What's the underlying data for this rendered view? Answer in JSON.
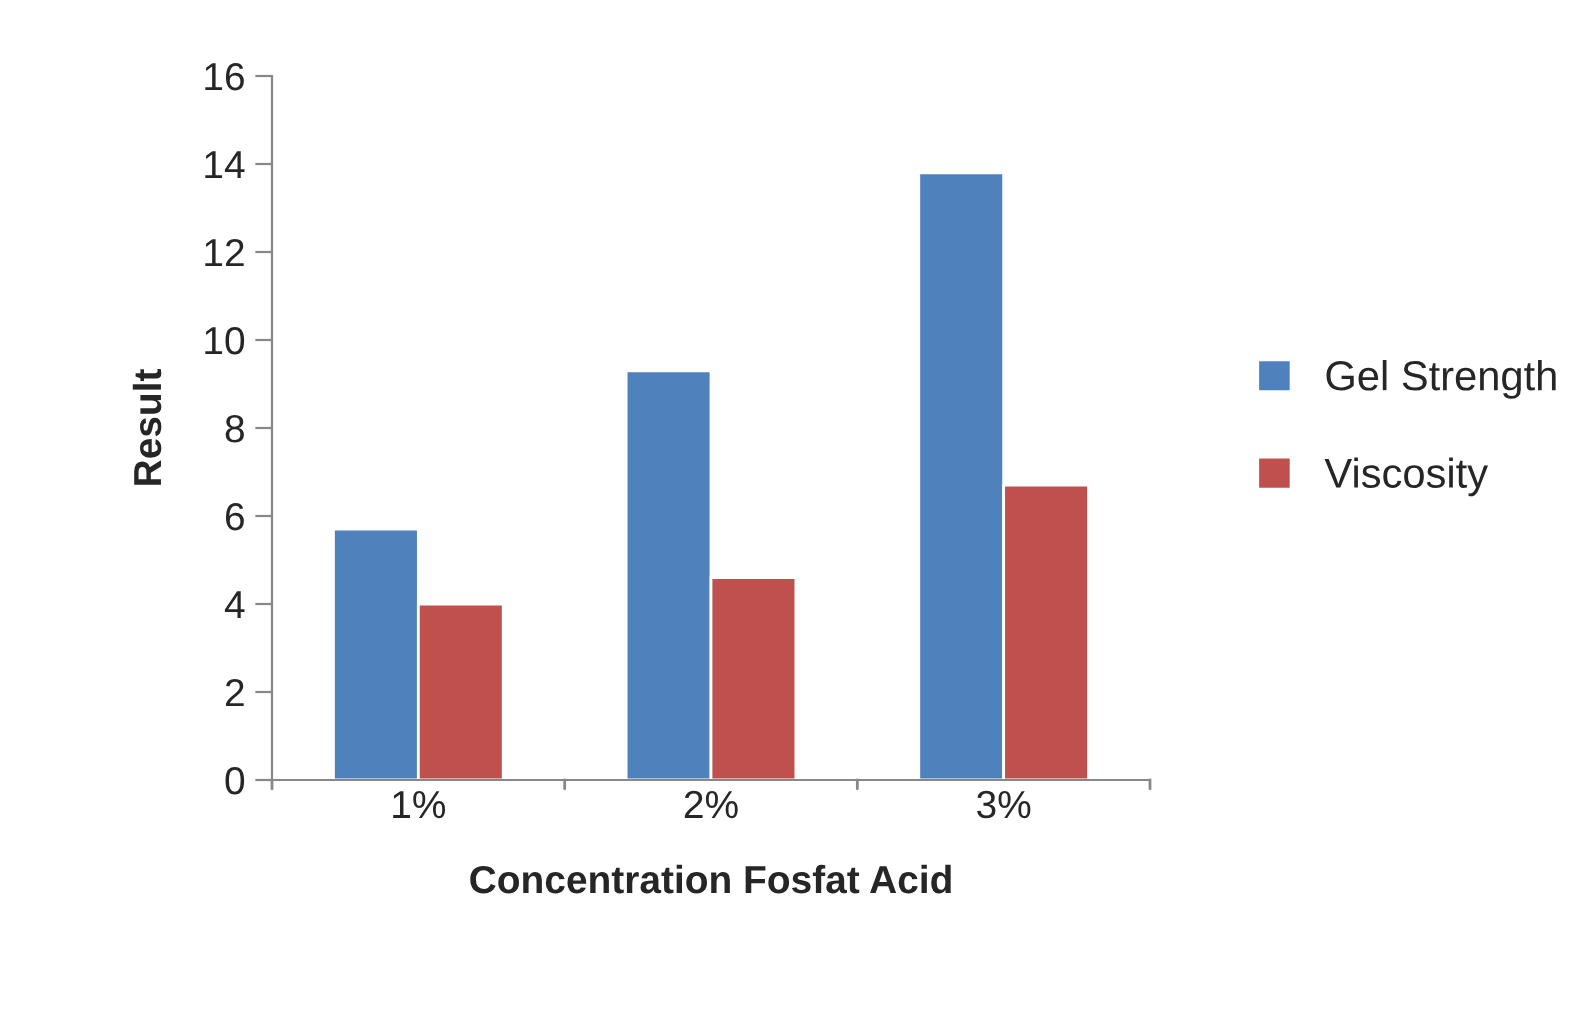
{
  "chart_data": {
    "type": "bar",
    "xlabel": "Concentration Fosfat Acid",
    "ylabel": "Result",
    "categories": [
      "1%",
      "2%",
      "3%"
    ],
    "series": [
      {
        "name": "Gel Strength",
        "color": "#4f81bd",
        "values": [
          5.7,
          9.3,
          13.8
        ]
      },
      {
        "name": "Viscosity",
        "color": "#c0504d",
        "values": [
          4.0,
          4.6,
          6.7
        ]
      }
    ],
    "ylim": [
      0,
      16
    ],
    "yticks": [
      0,
      2,
      4,
      6,
      8,
      10,
      12,
      14,
      16
    ],
    "grid": false,
    "legend": "right"
  }
}
